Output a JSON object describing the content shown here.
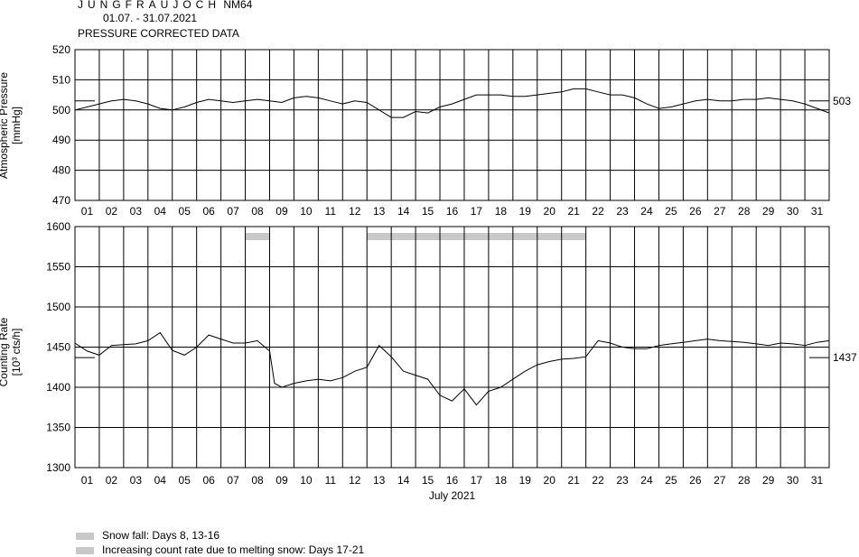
{
  "header": {
    "station_spaced": "JUNGFRAUJOCH",
    "station_code": "NM64",
    "period": "01.07. - 31.07.2021",
    "subtitle": "PRESSURE CORRECTED DATA"
  },
  "legend": [
    {
      "label": "Snow fall: Days 8, 13-16",
      "color": "#c8c8c8"
    },
    {
      "label": "Increasing count rate due to melting snow: Days 17-21",
      "color": "#c8c8c8"
    }
  ],
  "chart_data": [
    {
      "type": "line",
      "ylabel": "Atmospheric Pressure",
      "yunit": "[mmHg]",
      "ylim": [
        470,
        520
      ],
      "yticks": [
        470,
        480,
        490,
        500,
        510,
        520
      ],
      "xlim": [
        0,
        31
      ],
      "day_labels": [
        "01",
        "02",
        "03",
        "04",
        "05",
        "06",
        "07",
        "08",
        "09",
        "10",
        "11",
        "12",
        "13",
        "14",
        "15",
        "16",
        "17",
        "18",
        "19",
        "20",
        "21",
        "22",
        "23",
        "24",
        "25",
        "26",
        "27",
        "28",
        "29",
        "30",
        "31"
      ],
      "reference_value": 503,
      "reference_label": "503",
      "grid": true,
      "series": [
        {
          "x": [
            0,
            0.5,
            1,
            1.5,
            2,
            2.5,
            3,
            3.5,
            4,
            4.5,
            5,
            5.5,
            6,
            6.5,
            7,
            7.5,
            8,
            8.5,
            9,
            9.5,
            10,
            10.5,
            11,
            11.5,
            12,
            12.5,
            13,
            13.5,
            14,
            14.5,
            15,
            15.5,
            16,
            16.5,
            17,
            17.5,
            18,
            18.5,
            19,
            19.5,
            20,
            20.5,
            21,
            21.5,
            22,
            22.5,
            23,
            23.5,
            24,
            24.5,
            25,
            25.5,
            26,
            26.5,
            27,
            27.5,
            28,
            28.5,
            29,
            29.5,
            30,
            30.5,
            31
          ],
          "y": [
            500,
            501,
            502,
            503,
            503.5,
            503,
            502,
            500.5,
            500,
            501,
            502.5,
            503.5,
            503,
            502.5,
            503,
            503.5,
            503,
            502.5,
            504,
            504.5,
            504,
            503,
            502,
            503,
            502.5,
            500,
            497.5,
            497.5,
            499.5,
            499,
            501,
            502,
            503.5,
            505,
            505,
            505,
            504.5,
            504.5,
            505,
            505.5,
            506,
            507,
            507,
            506,
            505,
            505,
            504,
            502,
            500.5,
            501,
            502,
            503,
            503.5,
            503,
            503,
            503.5,
            503.5,
            504,
            503.5,
            503,
            502,
            500.5,
            499
          ]
        }
      ]
    },
    {
      "type": "line",
      "ylabel": "Counting Rate",
      "yunit": "[10³ cts/h]",
      "xlabel": "July 2021",
      "ylim": [
        1300,
        1600
      ],
      "yticks": [
        1300,
        1350,
        1400,
        1450,
        1500,
        1550,
        1600
      ],
      "xlim": [
        0,
        31
      ],
      "day_labels": [
        "01",
        "02",
        "03",
        "04",
        "05",
        "06",
        "07",
        "08",
        "09",
        "10",
        "11",
        "12",
        "13",
        "14",
        "15",
        "16",
        "17",
        "18",
        "19",
        "20",
        "21",
        "22",
        "23",
        "24",
        "25",
        "26",
        "27",
        "28",
        "29",
        "30",
        "31"
      ],
      "reference_value": 1437,
      "reference_label": "1437",
      "grid": true,
      "bands": [
        {
          "label": "Snow fall",
          "days": [
            8
          ]
        },
        {
          "label": "Snow fall",
          "days": [
            13,
            14,
            15,
            16
          ]
        },
        {
          "label": "Increasing count rate due to melting snow",
          "days": [
            17,
            18,
            19,
            20,
            21
          ]
        }
      ],
      "series": [
        {
          "x": [
            0,
            0.5,
            1,
            1.5,
            2,
            2.5,
            3,
            3.5,
            4,
            4.5,
            5,
            5.5,
            6,
            6.5,
            7,
            7.5,
            8,
            8.2,
            8.5,
            9,
            9.5,
            10,
            10.5,
            11,
            11.5,
            12,
            12.5,
            13,
            13.5,
            14,
            14.5,
            15,
            15.5,
            16,
            16.5,
            17,
            17.5,
            18,
            18.5,
            19,
            19.5,
            20,
            20.5,
            21,
            21.5,
            22,
            22.5,
            23,
            23.5,
            24,
            24.5,
            25,
            25.5,
            26,
            26.5,
            27,
            27.5,
            28,
            28.5,
            29,
            29.5,
            30,
            30.5,
            31
          ],
          "y": [
            1455,
            1445,
            1440,
            1452,
            1453,
            1454,
            1458,
            1468,
            1446,
            1440,
            1450,
            1465,
            1460,
            1455,
            1455,
            1458,
            1445,
            1405,
            1400,
            1405,
            1408,
            1410,
            1408,
            1412,
            1420,
            1425,
            1452,
            1438,
            1420,
            1415,
            1410,
            1390,
            1383,
            1398,
            1378,
            1395,
            1400,
            1410,
            1420,
            1428,
            1432,
            1435,
            1436,
            1438,
            1458,
            1455,
            1450,
            1448,
            1448,
            1452,
            1454,
            1456,
            1458,
            1460,
            1458,
            1457,
            1456,
            1454,
            1452,
            1455,
            1454,
            1452,
            1456,
            1458
          ]
        }
      ]
    }
  ]
}
